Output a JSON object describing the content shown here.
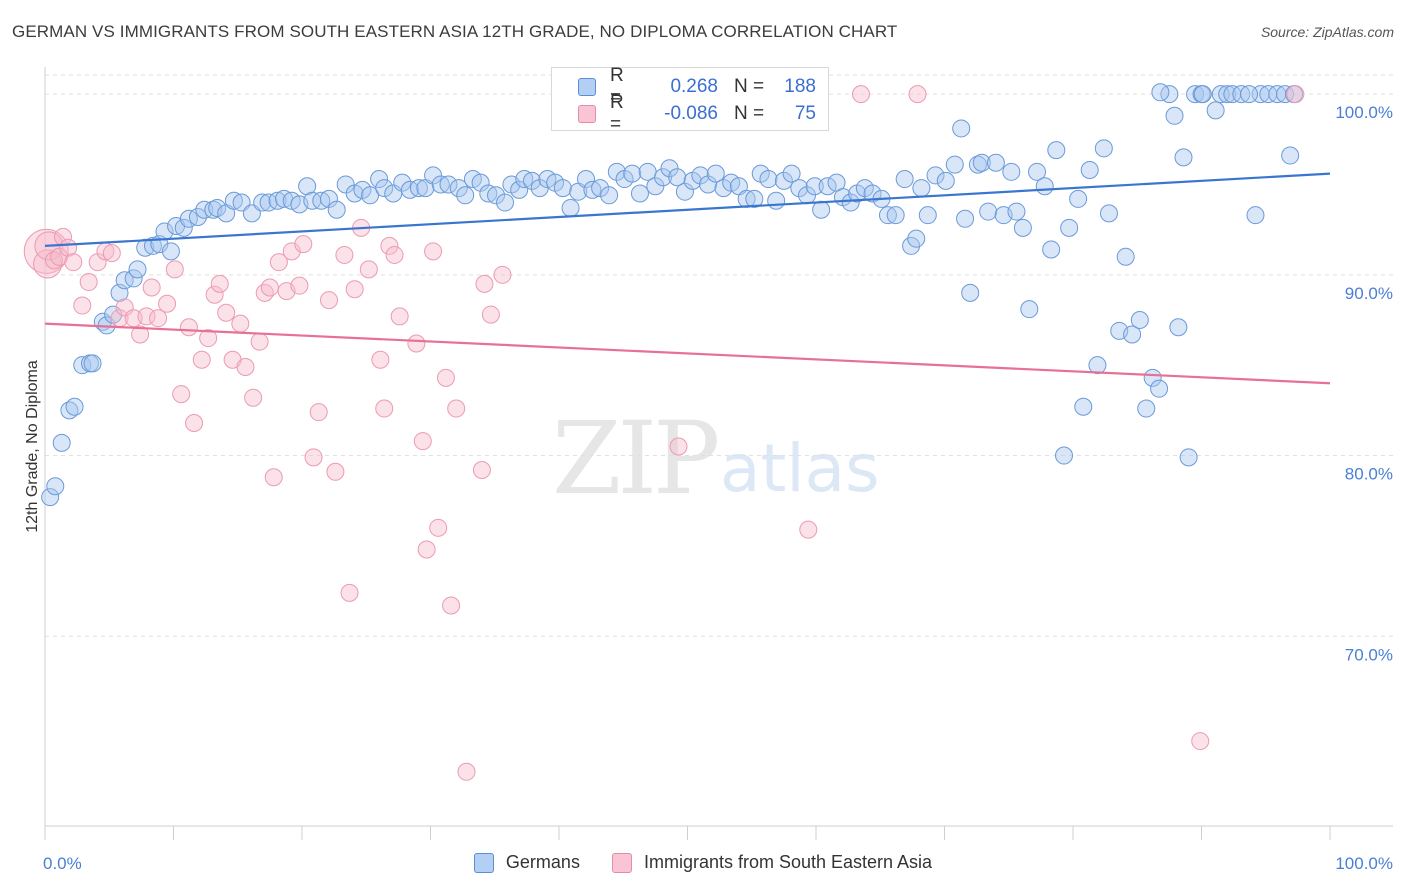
{
  "title": "GERMAN VS IMMIGRANTS FROM SOUTH EASTERN ASIA 12TH GRADE, NO DIPLOMA CORRELATION CHART",
  "source": "Source: ZipAtlas.com",
  "watermark": {
    "zip": "ZIP",
    "atlas": "atlas"
  },
  "colors": {
    "blue": "#3a76d0",
    "blue_fill": "#a8c8f0",
    "pink": "#e87095",
    "pink_fill": "#f7bccd",
    "tick_text": "#4a7fd4"
  },
  "legend": {
    "rows": [
      {
        "r_label": "R =",
        "r_value": "0.268",
        "n_label": "N =",
        "n_value": "188"
      },
      {
        "r_label": "R =",
        "r_value": "-0.086",
        "n_label": "N =",
        "n_value": "75"
      }
    ]
  },
  "bottom_legend": {
    "germans": "Germans",
    "immigrants": "Immigrants from South Eastern Asia"
  },
  "chart_data": {
    "type": "scatter",
    "title": "GERMAN VS IMMIGRANTS FROM SOUTH EASTERN ASIA 12TH GRADE, NO DIPLOMA CORRELATION CHART",
    "ylabel": "12th Grade, No Diploma",
    "xlabel": "",
    "xlim": [
      0,
      100
    ],
    "ylim": [
      59.5,
      101.5
    ],
    "x_tick_labels": [
      "0.0%",
      "100.0%"
    ],
    "y_ticks": [
      70,
      80,
      90,
      100
    ],
    "y_tick_labels": [
      "70.0%",
      "80.0%",
      "90.0%",
      "100.0%"
    ],
    "grid": true,
    "series": [
      {
        "name": "Germans",
        "trend": {
          "x": [
            0,
            100
          ],
          "y": [
            91.6,
            95.6
          ]
        },
        "points": [
          [
            0.4,
            77.7
          ],
          [
            0.8,
            78.3
          ],
          [
            1.3,
            80.7
          ],
          [
            1.9,
            82.5
          ],
          [
            2.3,
            82.7
          ],
          [
            2.9,
            85
          ],
          [
            3.5,
            85.1
          ],
          [
            3.7,
            85.1
          ],
          [
            4.5,
            87.4
          ],
          [
            4.8,
            87.2
          ],
          [
            5.3,
            87.8
          ],
          [
            5.8,
            89
          ],
          [
            6.2,
            89.7
          ],
          [
            6.9,
            89.8
          ],
          [
            7.2,
            90.3
          ],
          [
            7.8,
            91.5
          ],
          [
            8.4,
            91.6
          ],
          [
            8.9,
            91.7
          ],
          [
            9.8,
            91.3
          ],
          [
            9.3,
            92.4
          ],
          [
            10.2,
            92.7
          ],
          [
            10.8,
            92.6
          ],
          [
            11.2,
            93.1
          ],
          [
            11.9,
            93.2
          ],
          [
            12.4,
            93.6
          ],
          [
            13.1,
            93.6
          ],
          [
            13.4,
            93.7
          ],
          [
            14.1,
            93.4
          ],
          [
            14.7,
            94.1
          ],
          [
            15.3,
            94
          ],
          [
            16.1,
            93.4
          ],
          [
            16.9,
            94
          ],
          [
            17.4,
            94
          ],
          [
            18.1,
            94.1
          ],
          [
            18.6,
            94.2
          ],
          [
            19.2,
            94.1
          ],
          [
            19.8,
            93.9
          ],
          [
            20.4,
            94.9
          ],
          [
            20.8,
            94.1
          ],
          [
            21.5,
            94.1
          ],
          [
            22.1,
            94.2
          ],
          [
            22.7,
            93.6
          ],
          [
            23.4,
            95
          ],
          [
            24.1,
            94.5
          ],
          [
            24.7,
            94.7
          ],
          [
            25.3,
            94.4
          ],
          [
            26,
            95.3
          ],
          [
            26.4,
            94.8
          ],
          [
            27.1,
            94.5
          ],
          [
            27.8,
            95.1
          ],
          [
            28.4,
            94.7
          ],
          [
            29.1,
            94.8
          ],
          [
            29.6,
            94.8
          ],
          [
            30.2,
            95.5
          ],
          [
            30.8,
            95
          ],
          [
            31.4,
            95
          ],
          [
            32.2,
            94.8
          ],
          [
            32.7,
            94.4
          ],
          [
            33.3,
            95.3
          ],
          [
            33.9,
            95.1
          ],
          [
            34.5,
            94.5
          ],
          [
            35.1,
            94.4
          ],
          [
            35.8,
            94
          ],
          [
            36.3,
            95
          ],
          [
            36.9,
            94.7
          ],
          [
            37.3,
            95.3
          ],
          [
            37.9,
            95.2
          ],
          [
            38.5,
            94.8
          ],
          [
            39.1,
            95.3
          ],
          [
            39.7,
            95.1
          ],
          [
            40.3,
            94.8
          ],
          [
            40.9,
            93.7
          ],
          [
            41.5,
            94.6
          ],
          [
            42.1,
            95.3
          ],
          [
            42.6,
            94.7
          ],
          [
            43.2,
            94.8
          ],
          [
            43.9,
            94.4
          ],
          [
            44.5,
            95.7
          ],
          [
            45.1,
            95.3
          ],
          [
            45.7,
            95.6
          ],
          [
            46.3,
            94.5
          ],
          [
            46.9,
            95.7
          ],
          [
            47.5,
            94.9
          ],
          [
            48.1,
            95.4
          ],
          [
            48.6,
            95.9
          ],
          [
            49.2,
            95.4
          ],
          [
            49.8,
            94.6
          ],
          [
            50.4,
            95.2
          ],
          [
            51,
            95.5
          ],
          [
            51.6,
            95
          ],
          [
            52.2,
            95.6
          ],
          [
            52.8,
            94.8
          ],
          [
            53.4,
            95.1
          ],
          [
            54,
            94.9
          ],
          [
            54.6,
            94.2
          ],
          [
            55.2,
            94.2
          ],
          [
            55.7,
            95.6
          ],
          [
            56.3,
            95.3
          ],
          [
            56.9,
            94.1
          ],
          [
            57.5,
            95.2
          ],
          [
            58.1,
            95.6
          ],
          [
            58.7,
            94.8
          ],
          [
            59.3,
            94.4
          ],
          [
            59.9,
            94.9
          ],
          [
            60.4,
            93.6
          ],
          [
            60.9,
            94.9
          ],
          [
            61.6,
            95.1
          ],
          [
            62.1,
            94.3
          ],
          [
            62.7,
            94
          ],
          [
            63.2,
            94.5
          ],
          [
            63.8,
            94.8
          ],
          [
            64.4,
            94.5
          ],
          [
            65.1,
            94.2
          ],
          [
            65.6,
            93.3
          ],
          [
            66.2,
            93.3
          ],
          [
            66.9,
            95.3
          ],
          [
            67.4,
            91.6
          ],
          [
            67.8,
            92
          ],
          [
            68.2,
            94.8
          ],
          [
            68.7,
            93.3
          ],
          [
            69.3,
            95.5
          ],
          [
            70.1,
            95.2
          ],
          [
            70.8,
            96.1
          ],
          [
            71.3,
            98.1
          ],
          [
            71.6,
            93.1
          ],
          [
            72,
            89
          ],
          [
            72.6,
            96.1
          ],
          [
            72.9,
            96.2
          ],
          [
            73.4,
            93.5
          ],
          [
            74,
            96.2
          ],
          [
            74.6,
            93.3
          ],
          [
            75.2,
            95.7
          ],
          [
            75.6,
            93.5
          ],
          [
            76.1,
            92.6
          ],
          [
            76.6,
            88.1
          ],
          [
            77.2,
            95.7
          ],
          [
            77.8,
            94.9
          ],
          [
            78.3,
            91.4
          ],
          [
            78.7,
            96.9
          ],
          [
            79.3,
            80
          ],
          [
            79.7,
            92.6
          ],
          [
            80.4,
            94.2
          ],
          [
            80.8,
            82.7
          ],
          [
            81.3,
            95.8
          ],
          [
            81.9,
            85
          ],
          [
            82.4,
            97
          ],
          [
            82.8,
            93.4
          ],
          [
            83.6,
            86.9
          ],
          [
            84.1,
            91
          ],
          [
            84.6,
            86.7
          ],
          [
            85.2,
            87.5
          ],
          [
            85.7,
            82.6
          ],
          [
            86.2,
            84.3
          ],
          [
            86.7,
            83.7
          ],
          [
            87.5,
            100
          ],
          [
            87.9,
            98.8
          ],
          [
            88.2,
            87.1
          ],
          [
            88.6,
            96.5
          ],
          [
            89,
            79.9
          ],
          [
            89.5,
            100
          ],
          [
            90,
            100
          ],
          [
            91.1,
            99.1
          ],
          [
            91.5,
            100
          ],
          [
            92,
            100
          ],
          [
            92.4,
            100
          ],
          [
            93.1,
            100
          ],
          [
            94.2,
            93.3
          ],
          [
            94.6,
            100
          ],
          [
            95.2,
            100
          ],
          [
            95.9,
            100
          ],
          [
            96.5,
            100
          ],
          [
            97.2,
            100
          ],
          [
            86.8,
            100.1
          ],
          [
            90.1,
            100
          ],
          [
            96.9,
            96.6
          ],
          [
            93.7,
            100
          ]
        ]
      },
      {
        "name": "Immigrants from South Eastern Asia",
        "trend": {
          "x": [
            0,
            100
          ],
          "y": [
            87.3,
            84
          ]
        },
        "points": [
          [
            0.1,
            91.3
          ],
          [
            0.2,
            90.6
          ],
          [
            0.3,
            91.6
          ],
          [
            0.7,
            90.8
          ],
          [
            1.1,
            91
          ],
          [
            1.4,
            92.1
          ],
          [
            1.8,
            91.5
          ],
          [
            2.2,
            90.7
          ],
          [
            2.9,
            88.3
          ],
          [
            3.4,
            89.6
          ],
          [
            4.1,
            90.7
          ],
          [
            4.7,
            91.3
          ],
          [
            5.2,
            91.2
          ],
          [
            5.8,
            87.6
          ],
          [
            6.2,
            88.2
          ],
          [
            6.9,
            87.6
          ],
          [
            7.4,
            86.7
          ],
          [
            7.9,
            87.7
          ],
          [
            8.3,
            89.3
          ],
          [
            8.8,
            87.6
          ],
          [
            9.5,
            88.4
          ],
          [
            10.1,
            90.3
          ],
          [
            10.6,
            83.4
          ],
          [
            11.2,
            87.1
          ],
          [
            11.6,
            81.8
          ],
          [
            12.2,
            85.3
          ],
          [
            12.7,
            86.5
          ],
          [
            13.2,
            88.9
          ],
          [
            13.6,
            89.5
          ],
          [
            14.1,
            87.9
          ],
          [
            14.6,
            85.3
          ],
          [
            15.2,
            87.3
          ],
          [
            15.6,
            84.9
          ],
          [
            16.2,
            83.2
          ],
          [
            16.7,
            86.3
          ],
          [
            17.1,
            89
          ],
          [
            17.5,
            89.3
          ],
          [
            17.8,
            78.8
          ],
          [
            18.2,
            90.7
          ],
          [
            18.8,
            89.1
          ],
          [
            19.2,
            91.3
          ],
          [
            19.8,
            89.4
          ],
          [
            20.1,
            91.7
          ],
          [
            20.9,
            79.9
          ],
          [
            21.3,
            82.4
          ],
          [
            22.1,
            88.6
          ],
          [
            22.6,
            79.1
          ],
          [
            23.3,
            91.1
          ],
          [
            23.7,
            72.4
          ],
          [
            24.1,
            89.2
          ],
          [
            24.6,
            92.6
          ],
          [
            25.2,
            90.3
          ],
          [
            26.1,
            85.3
          ],
          [
            26.4,
            82.6
          ],
          [
            26.8,
            91.6
          ],
          [
            27.2,
            91.1
          ],
          [
            27.6,
            87.7
          ],
          [
            28.9,
            86.2
          ],
          [
            29.4,
            80.8
          ],
          [
            29.7,
            74.8
          ],
          [
            30.2,
            91.3
          ],
          [
            30.6,
            76
          ],
          [
            31.2,
            84.3
          ],
          [
            31.6,
            71.7
          ],
          [
            32,
            82.6
          ],
          [
            32.8,
            62.5
          ],
          [
            34,
            79.2
          ],
          [
            34.2,
            89.5
          ],
          [
            34.7,
            87.8
          ],
          [
            35.6,
            90
          ],
          [
            49.3,
            80.5
          ],
          [
            59.4,
            75.9
          ],
          [
            63.5,
            100
          ],
          [
            67.9,
            100
          ],
          [
            89.9,
            64.2
          ],
          [
            97.3,
            100
          ]
        ]
      }
    ]
  }
}
